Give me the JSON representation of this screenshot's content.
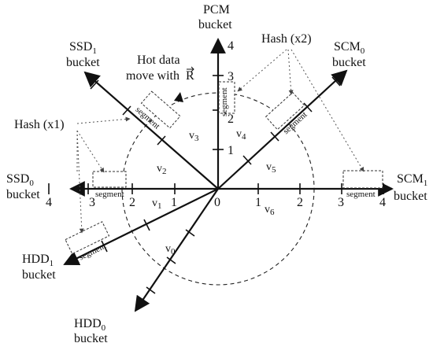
{
  "buckets": {
    "pcm": {
      "name": "PCM",
      "sub": "",
      "word": "bucket"
    },
    "ssd1": {
      "name": "SSD",
      "sub": "1",
      "word": "bucket"
    },
    "scm0": {
      "name": "SCM",
      "sub": "0",
      "word": "bucket"
    },
    "ssd0": {
      "name": "SSD",
      "sub": "0",
      "word": "bucket"
    },
    "scm1": {
      "name": "SCM",
      "sub": "1",
      "word": "bucket"
    },
    "hdd1": {
      "name": "HDD",
      "sub": "1",
      "word": "bucket"
    },
    "hdd0": {
      "name": "HDD",
      "sub": "0",
      "word": "bucket"
    }
  },
  "annotations": {
    "hash_x2": "Hash (x2)",
    "hash_x1": "Hash (x1)",
    "hot_line1": "Hot data",
    "hot_line2": "move with",
    "hot_vec": "R"
  },
  "segment_label": "segment",
  "ticks": {
    "vertical": [
      "1",
      "2",
      "3",
      "4"
    ],
    "left": [
      "4",
      "3",
      "2",
      "1"
    ],
    "right": [
      "1",
      "2",
      "3",
      "4"
    ],
    "origin": "0"
  },
  "virtual_regions": {
    "v0": {
      "name": "v",
      "sub": "0"
    },
    "v1": {
      "name": "v",
      "sub": "1"
    },
    "v2": {
      "name": "v",
      "sub": "2"
    },
    "v3": {
      "name": "v",
      "sub": "3"
    },
    "v4": {
      "name": "v",
      "sub": "4"
    },
    "v5": {
      "name": "v",
      "sub": "5"
    },
    "v6": {
      "name": "v",
      "sub": "6"
    }
  }
}
